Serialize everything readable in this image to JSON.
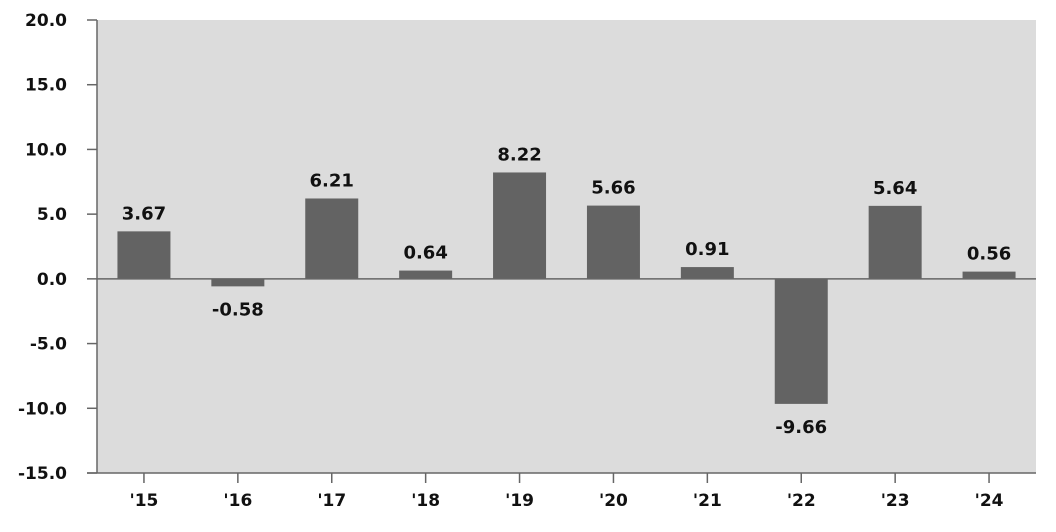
{
  "colors": {
    "plot_background": "#dcdcdc",
    "bar": "#636363",
    "axis": "#666666",
    "text": "#111111"
  },
  "chart_data": {
    "type": "bar",
    "title": "",
    "xlabel": "",
    "ylabel": "",
    "categories": [
      "'15",
      "'16",
      "'17",
      "'18",
      "'19",
      "'20",
      "'21",
      "'22",
      "'23",
      "'24"
    ],
    "values": [
      3.67,
      -0.58,
      6.21,
      0.64,
      8.22,
      5.66,
      0.91,
      -9.66,
      5.64,
      0.56
    ],
    "value_labels": [
      "3.67",
      "-0.58",
      "6.21",
      "0.64",
      "8.22",
      "5.66",
      "0.91",
      "-9.66",
      "5.64",
      "0.56"
    ],
    "ylim": [
      -15,
      20
    ],
    "yticks": [
      20,
      15,
      10,
      5,
      0,
      -5,
      -10,
      -15
    ],
    "ytick_labels": [
      "20.0",
      "15.0",
      "10.0",
      "5.0",
      "0.0",
      "-5.0",
      "-10.0",
      "-15.0"
    ],
    "grid": false,
    "legend": "none"
  }
}
